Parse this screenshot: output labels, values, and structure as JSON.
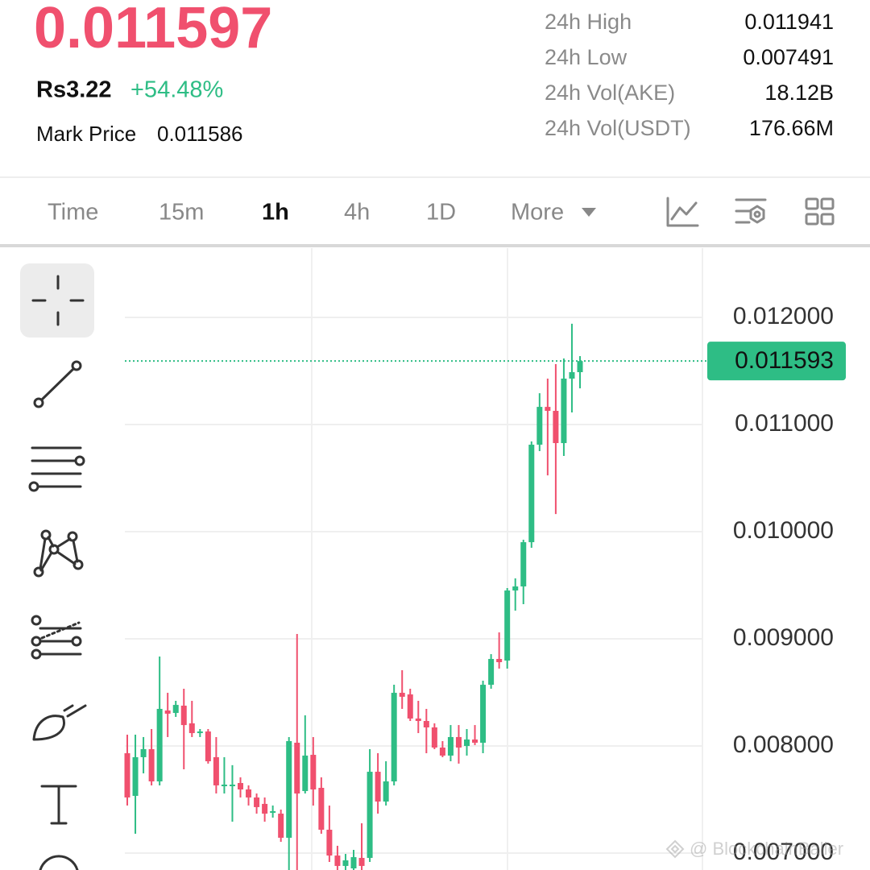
{
  "header": {
    "price": "0.011597",
    "local_price": "Rs3.22",
    "change": "+54.48%",
    "mark_price_label": "Mark Price",
    "mark_price": "0.011586"
  },
  "stats": [
    {
      "label": "24h High",
      "value": "0.011941"
    },
    {
      "label": "24h Low",
      "value": "0.007491"
    },
    {
      "label": "24h Vol(AKE)",
      "value": "18.12B"
    },
    {
      "label": "24h Vol(USDT)",
      "value": "176.66M"
    }
  ],
  "tabs": [
    "Time",
    "15m",
    "1h",
    "4h",
    "1D",
    "More"
  ],
  "active_tab": 2,
  "watermark": "@ BlockchainBaller",
  "chart_data": {
    "type": "candlestick",
    "up_color": "#2ebd85",
    "down_color": "#f0506e",
    "ylim": [
      0.006842,
      0.012647
    ],
    "yticks": [
      {
        "value": 0.012,
        "label": "0.012000"
      },
      {
        "value": 0.011,
        "label": "0.011000"
      },
      {
        "value": 0.01,
        "label": "0.010000"
      },
      {
        "value": 0.009,
        "label": "0.009000"
      },
      {
        "value": 0.008,
        "label": "0.008000"
      },
      {
        "value": 0.007,
        "label": "0.007000"
      }
    ],
    "grid": true,
    "last_price": 0.011593,
    "open": [
      0.007932,
      0.007534,
      0.007895,
      0.00797,
      0.007669,
      0.008331,
      0.008308,
      0.008376,
      0.008211,
      0.00812,
      0.008135,
      0.007895,
      0.007632,
      0.007624,
      0.007654,
      0.007594,
      0.007519,
      0.007459,
      0.007383,
      0.007368,
      0.007143,
      0.00803,
      0.007579,
      0.007917,
      0.007609,
      0.007218,
      0.006977,
      0.00688,
      0.006857,
      0.006955,
      0.006955,
      0.007759,
      0.007481,
      0.007669,
      0.008496,
      0.008481,
      0.008256,
      0.008233,
      0.008173,
      0.007985,
      0.00791,
      0.008083,
      0.008,
      0.00806,
      0.00803,
      0.008571,
      0.008812,
      0.008797,
      0.009451,
      0.009489,
      0.009902,
      0.010812,
      0.011165,
      0.011128,
      0.010827,
      0.011429,
      0.011489
    ],
    "high": [
      0.008105,
      0.008105,
      0.008083,
      0.008158,
      0.008835,
      0.008496,
      0.008421,
      0.008534,
      0.008421,
      0.008158,
      0.008158,
      0.008083,
      0.007895,
      0.00782,
      0.007707,
      0.007632,
      0.007556,
      0.007519,
      0.007444,
      0.007406,
      0.008083,
      0.009045,
      0.008286,
      0.008083,
      0.007707,
      0.007444,
      0.007068,
      0.006992,
      0.00703,
      0.007278,
      0.00797,
      0.007932,
      0.007857,
      0.008571,
      0.008707,
      0.008534,
      0.008421,
      0.008346,
      0.008211,
      0.008045,
      0.008195,
      0.008195,
      0.008158,
      0.008195,
      0.008609,
      0.008857,
      0.00906,
      0.009474,
      0.009564,
      0.009925,
      0.010842,
      0.011293,
      0.011429,
      0.011564,
      0.011617,
      0.011941,
      0.011639
    ],
    "low": [
      0.007444,
      0.00718,
      0.007744,
      0.007632,
      0.007632,
      0.008083,
      0.008271,
      0.007782,
      0.008083,
      0.008083,
      0.007835,
      0.007556,
      0.007556,
      0.007293,
      0.007519,
      0.007444,
      0.007368,
      0.007293,
      0.007331,
      0.007105,
      0.006842,
      0.006842,
      0.007556,
      0.007444,
      0.00718,
      0.006917,
      0.006842,
      0.006842,
      0.006842,
      0.006842,
      0.006917,
      0.007368,
      0.007444,
      0.007632,
      0.008346,
      0.008233,
      0.00812,
      0.007932,
      0.00797,
      0.007895,
      0.007857,
      0.007835,
      0.00791,
      0.008008,
      0.007932,
      0.008534,
      0.008722,
      0.008722,
      0.009263,
      0.009323,
      0.00985,
      0.010752,
      0.010526,
      0.010165,
      0.010707,
      0.011113,
      0.011338
    ],
    "close": [
      0.007519,
      0.007895,
      0.00797,
      0.007669,
      0.008346,
      0.008301,
      0.008383,
      0.008195,
      0.00812,
      0.008135,
      0.007857,
      0.007632,
      0.007639,
      0.007639,
      0.007594,
      0.007519,
      0.007429,
      0.007368,
      0.007391,
      0.007143,
      0.008045,
      0.007556,
      0.00791,
      0.007594,
      0.007218,
      0.006977,
      0.00688,
      0.006932,
      0.006962,
      0.00688,
      0.007759,
      0.007481,
      0.007669,
      0.008496,
      0.008459,
      0.008256,
      0.008233,
      0.008173,
      0.007985,
      0.00791,
      0.008083,
      0.007985,
      0.00806,
      0.00803,
      0.008571,
      0.008812,
      0.008782,
      0.009451,
      0.009489,
      0.009902,
      0.010812,
      0.011165,
      0.011128,
      0.010827,
      0.011429,
      0.011489,
      0.011593
    ]
  }
}
